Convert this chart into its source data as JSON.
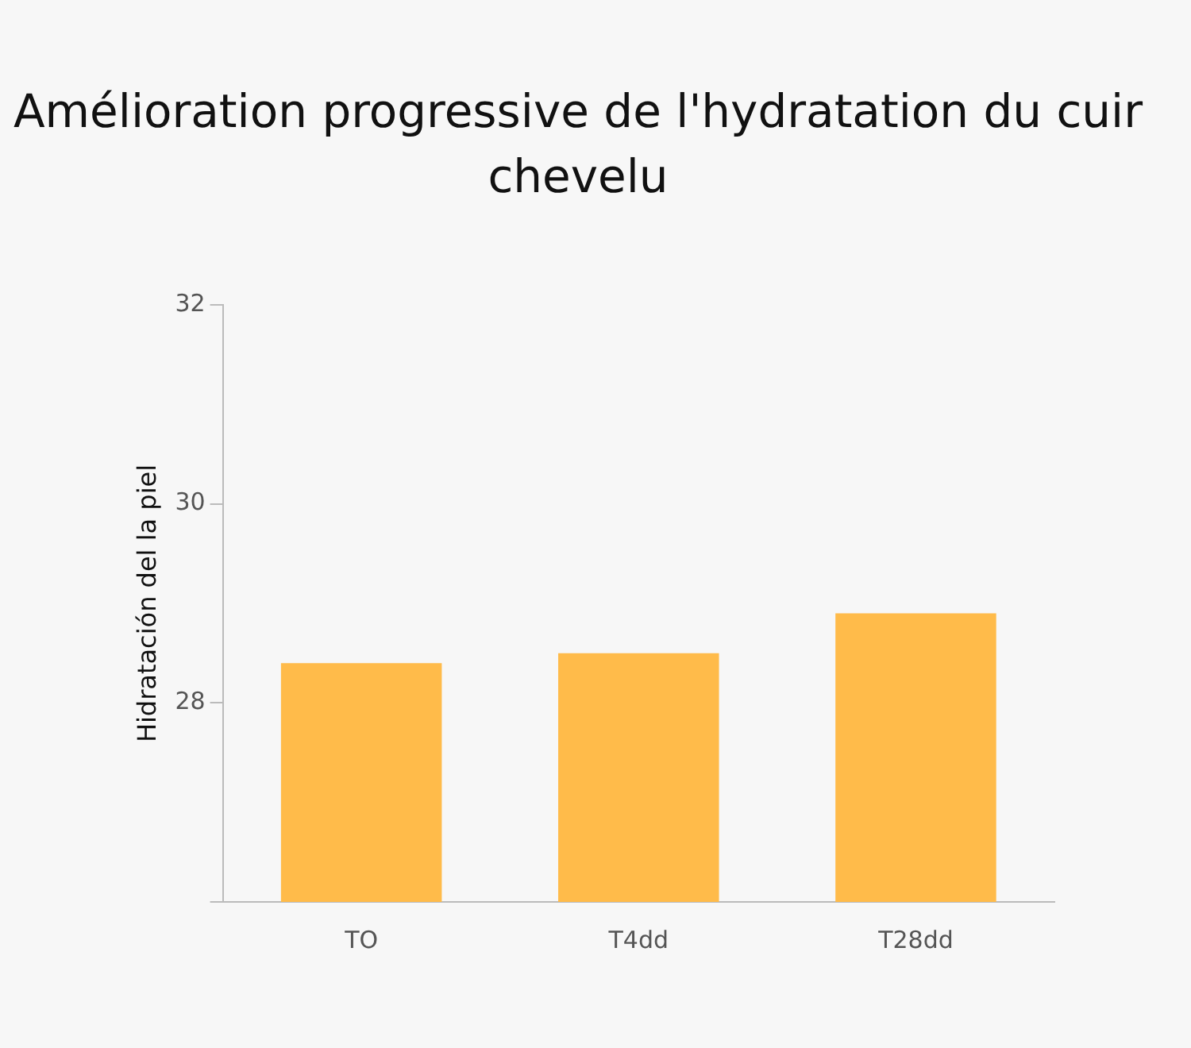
{
  "chart_data": {
    "type": "bar",
    "title": "Amélioration progressive de l'hydratation du cuir chevelu",
    "ylabel": "Hidratación del la piel",
    "categories": [
      "TO",
      "T4dd",
      "T28dd"
    ],
    "values": [
      28.4,
      28.5,
      28.9
    ],
    "color": "#ffbb4a",
    "ylim": [
      26,
      32
    ],
    "yticks": [
      {
        "value": 26,
        "label": null
      },
      28,
      30,
      32
    ],
    "grid": false,
    "legend": false
  }
}
